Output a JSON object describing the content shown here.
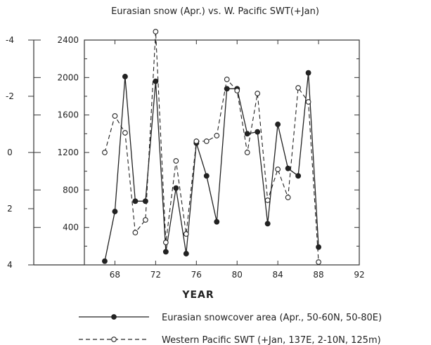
{
  "chart_data": {
    "type": "line",
    "title": "Eurasian snow (Apr.) vs. W. Pacific SWT(+Jan)",
    "xlabel": "YEAR",
    "xlim": [
      65,
      92
    ],
    "x_ticks": [
      "68",
      "72",
      "76",
      "80",
      "84",
      "88",
      "92"
    ],
    "x_tick_values": [
      68,
      72,
      76,
      80,
      84,
      88,
      92
    ],
    "ylim": [
      0,
      2400
    ],
    "y_ticks": [
      "400",
      "800",
      "1200",
      "1600",
      "2000",
      "2400"
    ],
    "y_tick_values": [
      400,
      800,
      1200,
      1600,
      2000,
      2400
    ],
    "y2_ticks": [
      "4",
      "2",
      "0",
      "-2",
      "-4"
    ],
    "y2_tick_values": [
      4,
      2,
      0,
      -2,
      -4
    ],
    "y2_range": [
      4,
      -4
    ],
    "series": [
      {
        "name": "Eurasian snowcover area (Apr., 50-60N, 50-80E)",
        "axis": "left",
        "marker": "filled-circle",
        "line": "solid",
        "x": [
          67,
          68,
          69,
          70,
          71,
          72,
          73,
          74,
          75,
          76,
          77,
          78,
          79,
          80,
          81,
          82,
          83,
          84,
          85,
          86,
          87,
          88
        ],
        "values": [
          40,
          570,
          2010,
          680,
          680,
          1960,
          140,
          820,
          120,
          1300,
          950,
          460,
          1880,
          1880,
          1400,
          1420,
          440,
          1500,
          1030,
          950,
          2050,
          190
        ]
      },
      {
        "name": "Western Pacific SWT (+Jan, 137E, 2-10N, 125m)",
        "axis": "right",
        "marker": "open-circle",
        "line": "dashed",
        "x": [
          67,
          68,
          69,
          70,
          71,
          72,
          73,
          74,
          75,
          76,
          77,
          78,
          79,
          80,
          81,
          82,
          83,
          84,
          85,
          86,
          87,
          88
        ],
        "values": [
          0.0,
          -1.3,
          -0.7,
          2.85,
          2.4,
          -4.3,
          3.2,
          0.3,
          2.9,
          -0.4,
          -0.4,
          -0.6,
          -2.6,
          -2.2,
          0.0,
          -2.1,
          1.7,
          0.6,
          1.6,
          -2.3,
          -1.8,
          3.9
        ]
      }
    ],
    "legend": {
      "placement": "bottom"
    }
  }
}
